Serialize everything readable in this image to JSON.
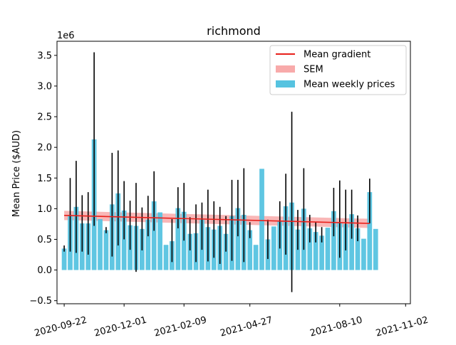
{
  "chart_data": {
    "type": "bar",
    "title": "richmond",
    "xlabel": "",
    "ylabel": "Mean Price ($AUD)",
    "y_scale_label": "1e6",
    "ylim": [
      -0.55,
      3.73
    ],
    "y_ticks": [
      -0.5,
      0.0,
      0.5,
      1.0,
      1.5,
      2.0,
      2.5,
      3.0,
      3.5
    ],
    "y_tick_labels": [
      "−0.5",
      "0.0",
      "0.5",
      "1.0",
      "1.5",
      "2.0",
      "2.5",
      "3.0",
      "3.5"
    ],
    "x_tick_labels": [
      "2020-09-22",
      "2020-12-01",
      "2021-02-09",
      "2021-04-27",
      "2021-08-10",
      "2021-11-02"
    ],
    "x_tick_weeks": [
      0,
      10,
      20,
      31,
      46,
      57
    ],
    "grid": false,
    "legend_position": "top-right",
    "colors": {
      "bars": "#56c3e0",
      "error_bars": "#000000",
      "trend": "#e8201b",
      "sem": "#f8aaaa"
    },
    "legend": [
      {
        "label": "Mean gradient",
        "kind": "line"
      },
      {
        "label": "SEM",
        "kind": "band"
      },
      {
        "label": "Mean weekly prices",
        "kind": "bar"
      }
    ],
    "weeks": [
      0,
      1,
      2,
      3,
      4,
      5,
      6,
      7,
      8,
      9,
      10,
      11,
      12,
      13,
      14,
      15,
      16,
      17,
      18,
      19,
      20,
      21,
      22,
      23,
      24,
      25,
      26,
      27,
      28,
      29,
      30,
      31,
      32,
      33,
      34,
      35,
      36,
      37,
      38,
      39,
      40,
      41,
      42,
      43,
      44,
      45,
      46,
      47,
      48,
      49,
      50,
      51,
      52,
      53,
      54,
      55,
      56,
      57
    ],
    "series": [
      {
        "name": "Mean weekly prices",
        "values": [
          0.35,
          0.9,
          1.03,
          0.76,
          0.76,
          2.13,
          0.83,
          0.65,
          1.07,
          1.25,
          0.97,
          0.73,
          0.72,
          0.67,
          0.82,
          1.12,
          0.94,
          0.41,
          0.47,
          1.01,
          0.95,
          0.59,
          0.6,
          0.82,
          0.7,
          0.66,
          0.72,
          0.59,
          0.88,
          1.01,
          0.9,
          0.65,
          0.41,
          1.65,
          0.5,
          0.71,
          0.79,
          1.04,
          1.1,
          0.66,
          1.0,
          0.68,
          0.62,
          0.56,
          0.69,
          0.96,
          0.78,
          0.75,
          0.91,
          0.68,
          0.51,
          1.27,
          0.67
        ],
        "weeks": [
          0,
          1,
          2,
          3,
          4,
          5,
          6,
          7,
          8,
          9,
          10,
          11,
          12,
          13,
          14,
          15,
          16,
          17,
          18,
          19,
          20,
          21,
          22,
          23,
          24,
          25,
          26,
          27,
          28,
          29,
          30,
          31,
          32,
          33,
          34,
          35,
          36,
          37,
          38,
          39,
          40,
          41,
          42,
          43,
          44,
          45,
          46,
          47,
          48,
          49,
          50,
          51,
          52
        ]
      }
    ],
    "error_bars": [
      {
        "week": 0,
        "low": 0.3,
        "high": 0.4
      },
      {
        "week": 1,
        "low": 0.3,
        "high": 1.5
      },
      {
        "week": 2,
        "low": 0.28,
        "high": 1.78
      },
      {
        "week": 3,
        "low": 0.3,
        "high": 1.22
      },
      {
        "week": 4,
        "low": 0.25,
        "high": 1.27
      },
      {
        "week": 5,
        "low": 0.72,
        "high": 3.55
      },
      {
        "week": 7,
        "low": 0.6,
        "high": 0.7
      },
      {
        "week": 8,
        "low": 0.22,
        "high": 1.91
      },
      {
        "week": 9,
        "low": 0.4,
        "high": 1.95
      },
      {
        "week": 10,
        "low": 0.5,
        "high": 1.45
      },
      {
        "week": 11,
        "low": 0.33,
        "high": 1.13
      },
      {
        "week": 12,
        "low": -0.03,
        "high": 1.42
      },
      {
        "week": 13,
        "low": 0.32,
        "high": 1.02
      },
      {
        "week": 14,
        "low": 0.55,
        "high": 1.21
      },
      {
        "week": 15,
        "low": 0.64,
        "high": 1.61
      },
      {
        "week": 18,
        "low": 0.13,
        "high": 0.83
      },
      {
        "week": 19,
        "low": 0.68,
        "high": 1.35
      },
      {
        "week": 20,
        "low": 0.48,
        "high": 1.42
      },
      {
        "week": 21,
        "low": 0.32,
        "high": 0.86
      },
      {
        "week": 22,
        "low": 0.13,
        "high": 1.07
      },
      {
        "week": 23,
        "low": 0.33,
        "high": 1.1
      },
      {
        "week": 24,
        "low": 0.14,
        "high": 1.31
      },
      {
        "week": 25,
        "low": 0.2,
        "high": 1.12
      },
      {
        "week": 26,
        "low": 0.1,
        "high": 1.03
      },
      {
        "week": 27,
        "low": 0.3,
        "high": 0.88
      },
      {
        "week": 28,
        "low": 0.15,
        "high": 1.47
      },
      {
        "week": 29,
        "low": 0.55,
        "high": 1.47
      },
      {
        "week": 30,
        "low": 0.13,
        "high": 1.66
      },
      {
        "week": 31,
        "low": 0.52,
        "high": 0.78
      },
      {
        "week": 34,
        "low": 0.18,
        "high": 0.82
      },
      {
        "week": 36,
        "low": 0.35,
        "high": 1.12
      },
      {
        "week": 37,
        "low": 0.25,
        "high": 1.57
      },
      {
        "week": 38,
        "low": -0.36,
        "high": 2.58
      },
      {
        "week": 39,
        "low": 0.33,
        "high": 0.98
      },
      {
        "week": 40,
        "low": 0.33,
        "high": 1.66
      },
      {
        "week": 41,
        "low": 0.45,
        "high": 0.9
      },
      {
        "week": 42,
        "low": 0.45,
        "high": 0.78
      },
      {
        "week": 43,
        "low": 0.45,
        "high": 0.7
      },
      {
        "week": 45,
        "low": 0.55,
        "high": 1.34
      },
      {
        "week": 46,
        "low": 0.2,
        "high": 1.46
      },
      {
        "week": 47,
        "low": 0.32,
        "high": 1.31
      },
      {
        "week": 48,
        "low": 0.51,
        "high": 1.31
      },
      {
        "week": 49,
        "low": 0.47,
        "high": 0.89
      },
      {
        "week": 51,
        "low": 0.76,
        "high": 1.49
      }
    ],
    "trend": {
      "start_week": 0,
      "end_week": 51,
      "start": 0.89,
      "end": 0.76,
      "sem": 0.075
    }
  }
}
